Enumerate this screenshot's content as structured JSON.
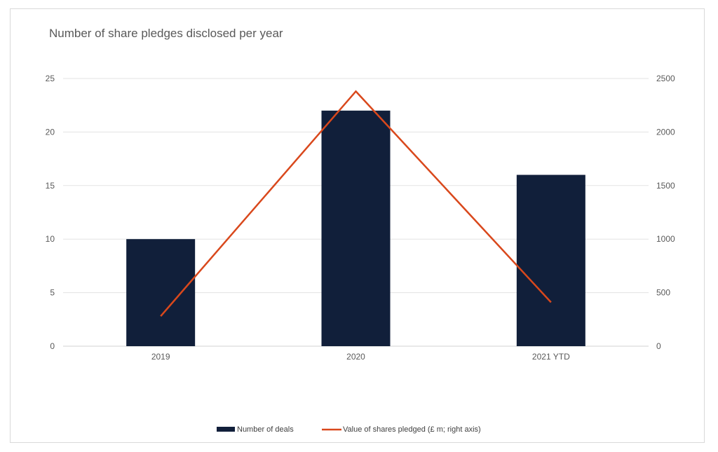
{
  "chart_data": {
    "type": "bar+line",
    "title": "Number of share pledges disclosed per year",
    "categories": [
      "2019",
      "2020",
      "2021 YTD"
    ],
    "series": [
      {
        "name": "Number of deals",
        "type": "bar",
        "axis": "left",
        "color": "#111f3a",
        "values": [
          10,
          22,
          16
        ]
      },
      {
        "name": "Value of shares pledged (£ m; right axis)",
        "type": "line",
        "axis": "right",
        "color": "#d9481c",
        "values": [
          280,
          2380,
          410
        ]
      }
    ],
    "y_left": {
      "min": 0,
      "max": 25,
      "ticks": [
        0,
        5,
        10,
        15,
        20,
        25
      ]
    },
    "y_right": {
      "min": 0,
      "max": 2500,
      "ticks": [
        0,
        500,
        1000,
        1500,
        2000,
        2500
      ]
    },
    "grid": true,
    "legend_position": "bottom"
  }
}
